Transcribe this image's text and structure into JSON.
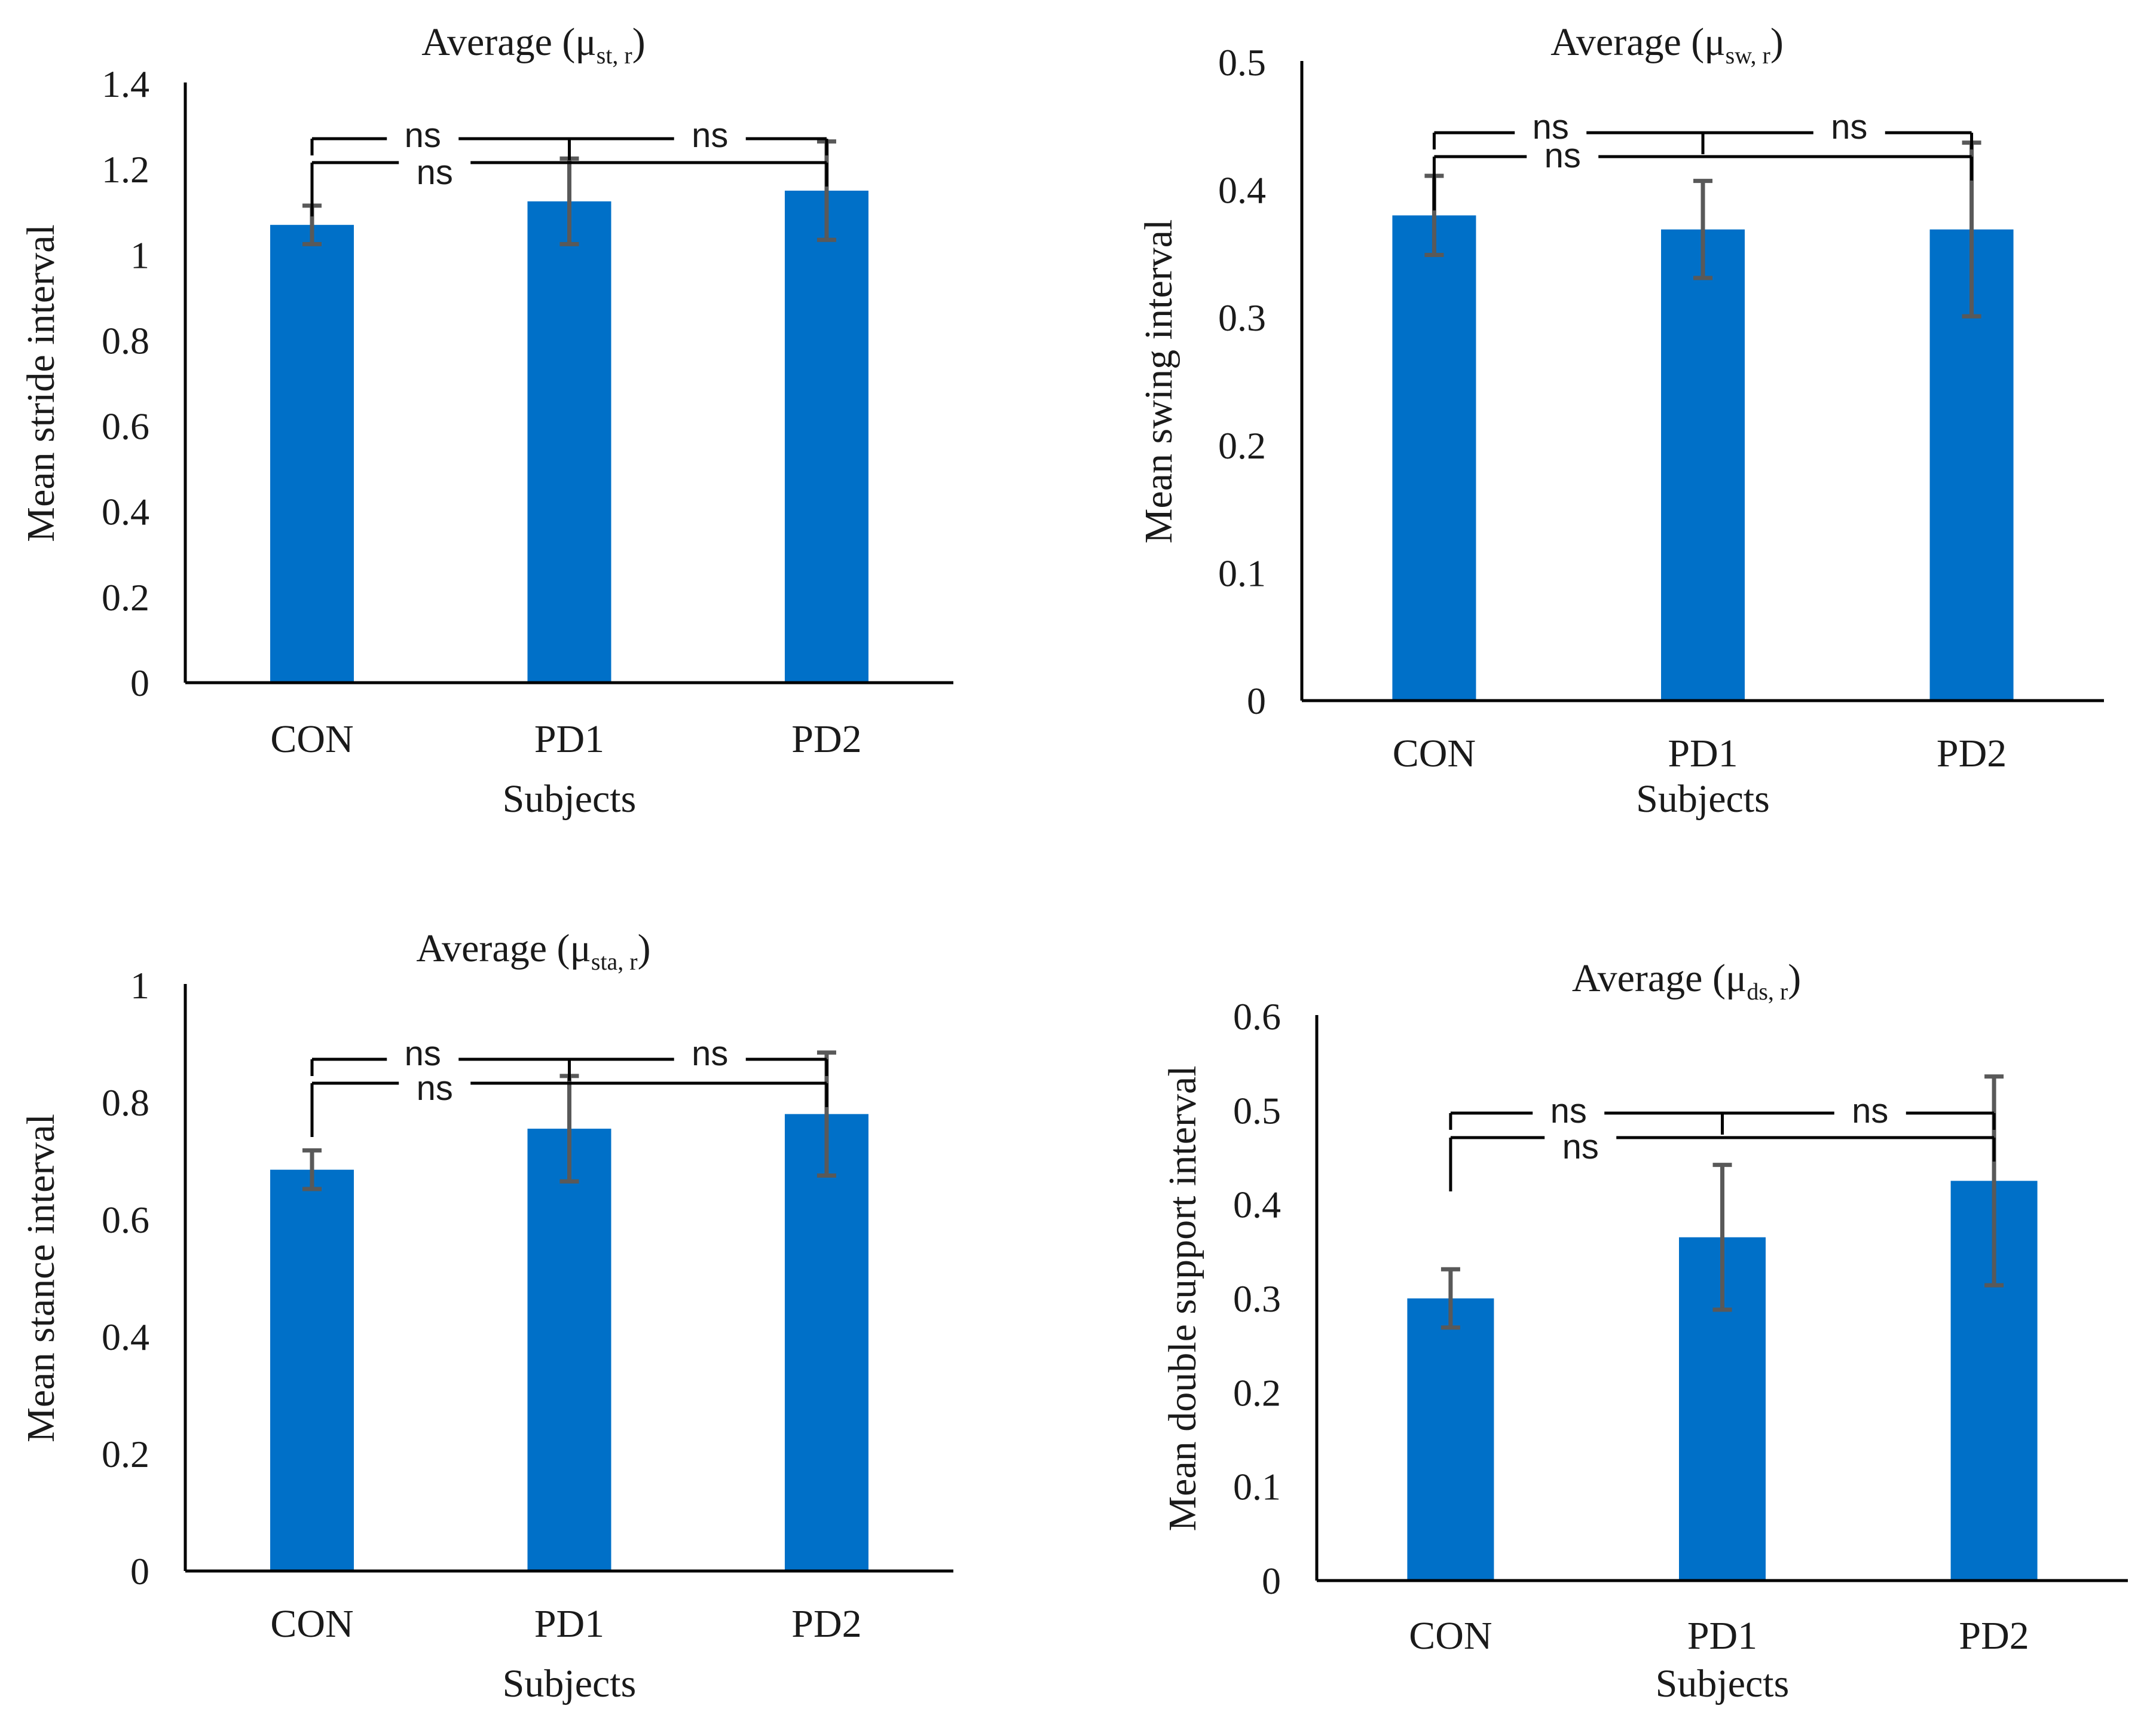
{
  "colors": {
    "bar": "#0070C8",
    "error_bar": "#595959",
    "axis": "#000000",
    "bracket": "#000000"
  },
  "chart_data": [
    {
      "type": "bar",
      "title": {
        "prefix": "Average (",
        "symbol": "μ",
        "subscript": "st, r",
        "suffix": ")"
      },
      "xlabel": "Subjects",
      "ylabel": "Mean stride interval",
      "categories": [
        "CON",
        "PD1",
        "PD2"
      ],
      "values": [
        1.07,
        1.125,
        1.15
      ],
      "errors": [
        0.045,
        0.1,
        0.115
      ],
      "ylim": [
        0,
        1.4
      ],
      "yticks": [
        0,
        0.2,
        0.4,
        0.6,
        0.8,
        1,
        1.2,
        1.4
      ],
      "ytick_labels": [
        "0",
        "0.2",
        "0.4",
        "0.6",
        "0.8",
        "1",
        "1.2",
        "1.4"
      ],
      "grid": false,
      "significance": [
        {
          "label": "ns",
          "comparison": "CON vs PD1"
        },
        {
          "label": "ns",
          "comparison": "PD1 vs PD2"
        },
        {
          "label": "ns",
          "comparison": "CON vs PD2"
        }
      ]
    },
    {
      "type": "bar",
      "title": {
        "prefix": "Average (",
        "symbol": "μ",
        "subscript": "sw, r",
        "suffix": ")"
      },
      "xlabel": "Subjects",
      "ylabel": "Mean swing interval",
      "categories": [
        "CON",
        "PD1",
        "PD2"
      ],
      "values": [
        0.38,
        0.369,
        0.369
      ],
      "errors": [
        0.031,
        0.038,
        0.068
      ],
      "ylim": [
        0,
        0.5
      ],
      "yticks": [
        0,
        0.1,
        0.2,
        0.3,
        0.4,
        0.5
      ],
      "ytick_labels": [
        "0",
        "0.1",
        "0.2",
        "0.3",
        "0.4",
        "0.5"
      ],
      "grid": false,
      "significance": [
        {
          "label": "ns",
          "comparison": "CON vs PD1"
        },
        {
          "label": "ns",
          "comparison": "PD1 vs PD2"
        },
        {
          "label": "ns",
          "comparison": "CON vs PD2"
        }
      ]
    },
    {
      "type": "bar",
      "title": {
        "prefix": "Average (",
        "symbol": "μ",
        "subscript": "sta, r",
        "suffix": ")"
      },
      "xlabel": "Subjects",
      "ylabel": "Mean stance interval",
      "categories": [
        "CON",
        "PD1",
        "PD2"
      ],
      "values": [
        0.685,
        0.755,
        0.78
      ],
      "errors": [
        0.033,
        0.09,
        0.105
      ],
      "ylim": [
        0,
        1
      ],
      "yticks": [
        0,
        0.2,
        0.4,
        0.6,
        0.8,
        1
      ],
      "ytick_labels": [
        "0",
        "0.2",
        "0.4",
        "0.6",
        "0.8",
        "1"
      ],
      "grid": false,
      "significance": [
        {
          "label": "ns",
          "comparison": "CON vs PD1"
        },
        {
          "label": "ns",
          "comparison": "PD1 vs PD2"
        },
        {
          "label": "ns",
          "comparison": "CON vs PD2"
        }
      ]
    },
    {
      "type": "bar",
      "title": {
        "prefix": "Average (",
        "symbol": "μ",
        "subscript": "ds, r",
        "suffix": ")"
      },
      "xlabel": "Subjects",
      "ylabel": "Mean double support interval",
      "categories": [
        "CON",
        "PD1",
        "PD2"
      ],
      "values": [
        0.3,
        0.365,
        0.425
      ],
      "errors": [
        0.031,
        0.077,
        0.111
      ],
      "ylim": [
        0,
        0.6
      ],
      "yticks": [
        0,
        0.1,
        0.2,
        0.3,
        0.4,
        0.5,
        0.6
      ],
      "ytick_labels": [
        "0",
        "0.1",
        "0.2",
        "0.3",
        "0.4",
        "0.5",
        "0.6"
      ],
      "grid": false,
      "significance": [
        {
          "label": "ns",
          "comparison": "CON vs PD1"
        },
        {
          "label": "ns",
          "comparison": "PD1 vs PD2"
        },
        {
          "label": "ns",
          "comparison": "CON vs PD2"
        }
      ]
    }
  ]
}
